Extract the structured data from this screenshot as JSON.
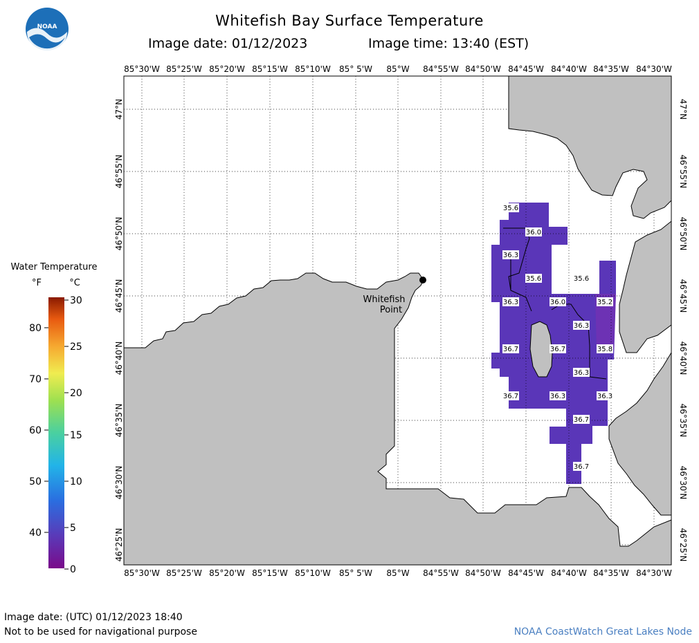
{
  "header": {
    "logo_text": "NOAA",
    "title": "Whitefish Bay Surface Temperature",
    "image_date": "Image date: 01/12/2023",
    "image_time": "Image time: 13:40 (EST)"
  },
  "map": {
    "lon_labels": [
      "85°30'W",
      "85°25'W",
      "85°20'W",
      "85°15'W",
      "85°10'W",
      "85° 5'W",
      "85°W",
      "84°55'W",
      "84°50'W",
      "84°45'W",
      "84°40'W",
      "84°35'W",
      "84°30'W"
    ],
    "lat_labels": [
      "47°N",
      "46°55'N",
      "46°50'N",
      "46°45'N",
      "46°40'N",
      "46°35'N",
      "46°30'N",
      "46°25'N"
    ],
    "place_label_line1": "Whitefish",
    "place_label_line2": "Point",
    "isotherm_labels": [
      "35.6",
      "36.0",
      "36.3",
      "35.6",
      "35.6",
      "36.3",
      "36.0",
      "35.2",
      "36.3",
      "36.7",
      "36.7",
      "35.8",
      "36.3",
      "36.7",
      "36.3",
      "36.3",
      "36.7",
      "36.7"
    ],
    "land_color": "#c0c0c0",
    "water_temp_color": "#5a36b8"
  },
  "legend": {
    "title": "Water Temperature",
    "f_unit": "°F",
    "c_unit": "°C",
    "f_ticks": [
      "80",
      "70",
      "60",
      "50",
      "40"
    ],
    "c_ticks": [
      "30",
      "25",
      "20",
      "15",
      "10",
      "5",
      "0"
    ]
  },
  "footer": {
    "utc_date": "Image date: (UTC) 01/12/2023   18:40",
    "disclaimer": "Not to be used for navigational purpose",
    "credit": "NOAA CoastWatch Great Lakes Node"
  }
}
